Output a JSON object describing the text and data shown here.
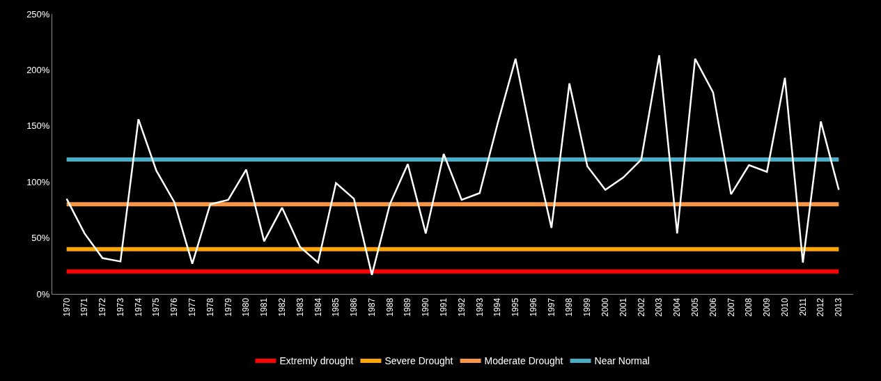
{
  "chart_data": {
    "type": "line",
    "categories": [
      "1970",
      "1971",
      "1972",
      "1973",
      "1974",
      "1975",
      "1976",
      "1977",
      "1978",
      "1979",
      "1980",
      "1981",
      "1982",
      "1983",
      "1984",
      "1985",
      "1986",
      "1987",
      "1988",
      "1989",
      "1990",
      "1991",
      "1992",
      "1993",
      "1994",
      "1995",
      "1996",
      "1997",
      "1998",
      "1999",
      "2000",
      "2001",
      "2002",
      "2003",
      "2004",
      "2005",
      "2006",
      "2007",
      "2008",
      "2009",
      "2010",
      "2011",
      "2012",
      "2013"
    ],
    "series": [
      {
        "name": "Extremly drought",
        "color": "#ff0000",
        "values": [
          20,
          20,
          20,
          20,
          20,
          20,
          20,
          20,
          20,
          20,
          20,
          20,
          20,
          20,
          20,
          20,
          20,
          20,
          20,
          20,
          20,
          20,
          20,
          20,
          20,
          20,
          20,
          20,
          20,
          20,
          20,
          20,
          20,
          20,
          20,
          20,
          20,
          20,
          20,
          20,
          20,
          20,
          20,
          20
        ]
      },
      {
        "name": "Severe Drought",
        "color": "#ffa500",
        "values": [
          40,
          40,
          40,
          40,
          40,
          40,
          40,
          40,
          40,
          40,
          40,
          40,
          40,
          40,
          40,
          40,
          40,
          40,
          40,
          40,
          40,
          40,
          40,
          40,
          40,
          40,
          40,
          40,
          40,
          40,
          40,
          40,
          40,
          40,
          40,
          40,
          40,
          40,
          40,
          40,
          40,
          40,
          40,
          40
        ]
      },
      {
        "name": "Moderate Drought",
        "color": "#f79646",
        "values": [
          80,
          80,
          80,
          80,
          80,
          80,
          80,
          80,
          80,
          80,
          80,
          80,
          80,
          80,
          80,
          80,
          80,
          80,
          80,
          80,
          80,
          80,
          80,
          80,
          80,
          80,
          80,
          80,
          80,
          80,
          80,
          80,
          80,
          80,
          80,
          80,
          80,
          80,
          80,
          80,
          80,
          80,
          80,
          80
        ]
      },
      {
        "name": "Near Normal",
        "color": "#4bacc6",
        "values": [
          120,
          120,
          120,
          120,
          120,
          120,
          120,
          120,
          120,
          120,
          120,
          120,
          120,
          120,
          120,
          120,
          120,
          120,
          120,
          120,
          120,
          120,
          120,
          120,
          120,
          120,
          120,
          120,
          120,
          120,
          120,
          120,
          120,
          120,
          120,
          120,
          120,
          120,
          120,
          120,
          120,
          120,
          120,
          120
        ]
      },
      {
        "color": "#ffffff",
        "values": [
          85,
          54,
          32,
          29,
          156,
          110,
          82,
          27,
          80,
          84,
          111,
          47,
          77,
          42,
          28,
          99,
          85,
          17,
          80,
          116,
          54,
          125,
          84,
          90,
          152,
          210,
          130,
          59,
          188,
          114,
          93,
          104,
          120,
          213,
          54,
          210,
          180,
          89,
          115,
          109,
          193,
          28,
          154,
          93
        ]
      }
    ],
    "ylim": [
      0,
      250
    ],
    "yticks": [
      {
        "value": 0,
        "label": "0%"
      },
      {
        "value": 50,
        "label": "50%"
      },
      {
        "value": 100,
        "label": "100%"
      },
      {
        "value": 150,
        "label": "150%"
      },
      {
        "value": 200,
        "label": "200%"
      },
      {
        "value": 250,
        "label": "250%"
      }
    ],
    "grid": false,
    "legend": "bottom",
    "marker": "none",
    "line_style": "solid"
  }
}
